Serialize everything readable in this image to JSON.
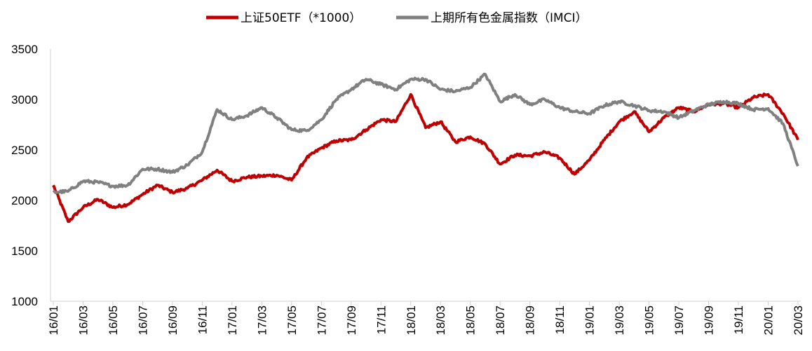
{
  "chart_data": {
    "type": "line",
    "title": "",
    "xlabel": "",
    "ylabel": "",
    "ylim": [
      1000,
      3500
    ],
    "yticks": [
      1000,
      1500,
      2000,
      2500,
      3000,
      3500
    ],
    "x_tick_labels": [
      "16/01",
      "16/03",
      "16/05",
      "16/07",
      "16/09",
      "16/11",
      "17/01",
      "17/03",
      "17/05",
      "17/07",
      "17/09",
      "17/11",
      "18/01",
      "18/03",
      "18/05",
      "18/07",
      "18/09",
      "18/11",
      "19/01",
      "19/03",
      "19/05",
      "19/07",
      "19/09",
      "19/11",
      "20/01",
      "20/03"
    ],
    "grid": false,
    "legend": "top-center",
    "series": [
      {
        "name": "上证50ETF（*1000）",
        "color": "#c00000",
        "points": [
          [
            "16/01",
            2150
          ],
          [
            "16/02",
            1790
          ],
          [
            "16/03",
            1930
          ],
          [
            "16/04",
            2010
          ],
          [
            "16/05",
            1930
          ],
          [
            "16/06",
            1960
          ],
          [
            "16/07",
            2060
          ],
          [
            "16/08",
            2150
          ],
          [
            "16/09",
            2080
          ],
          [
            "16/10",
            2120
          ],
          [
            "16/11",
            2200
          ],
          [
            "16/12",
            2300
          ],
          [
            "17/01",
            2190
          ],
          [
            "17/02",
            2230
          ],
          [
            "17/03",
            2240
          ],
          [
            "17/04",
            2250
          ],
          [
            "17/05",
            2200
          ],
          [
            "17/06",
            2420
          ],
          [
            "17/07",
            2520
          ],
          [
            "17/08",
            2590
          ],
          [
            "17/09",
            2600
          ],
          [
            "17/10",
            2700
          ],
          [
            "17/11",
            2800
          ],
          [
            "17/12",
            2780
          ],
          [
            "18/01",
            3050
          ],
          [
            "18/02",
            2720
          ],
          [
            "18/03",
            2780
          ],
          [
            "18/04",
            2580
          ],
          [
            "18/05",
            2630
          ],
          [
            "18/06",
            2560
          ],
          [
            "18/07",
            2360
          ],
          [
            "18/08",
            2450
          ],
          [
            "18/09",
            2440
          ],
          [
            "18/10",
            2480
          ],
          [
            "18/11",
            2420
          ],
          [
            "18/12",
            2260
          ],
          [
            "19/01",
            2400
          ],
          [
            "19/02",
            2600
          ],
          [
            "19/03",
            2780
          ],
          [
            "19/04",
            2880
          ],
          [
            "19/05",
            2680
          ],
          [
            "19/06",
            2820
          ],
          [
            "19/07",
            2920
          ],
          [
            "19/08",
            2880
          ],
          [
            "19/09",
            2950
          ],
          [
            "19/10",
            2960
          ],
          [
            "19/11",
            2920
          ],
          [
            "19/12",
            3020
          ],
          [
            "20/01",
            3050
          ],
          [
            "20/02",
            2860
          ],
          [
            "20/03",
            2600
          ]
        ]
      },
      {
        "name": "上期所有色金属指数（IMCI）",
        "color": "#808080",
        "points": [
          [
            "16/01",
            2080
          ],
          [
            "16/02",
            2090
          ],
          [
            "16/03",
            2190
          ],
          [
            "16/04",
            2180
          ],
          [
            "16/05",
            2140
          ],
          [
            "16/06",
            2150
          ],
          [
            "16/07",
            2310
          ],
          [
            "16/08",
            2310
          ],
          [
            "16/09",
            2280
          ],
          [
            "16/10",
            2350
          ],
          [
            "16/11",
            2480
          ],
          [
            "16/12",
            2900
          ],
          [
            "17/01",
            2800
          ],
          [
            "17/02",
            2840
          ],
          [
            "17/03",
            2920
          ],
          [
            "17/04",
            2820
          ],
          [
            "17/05",
            2700
          ],
          [
            "17/06",
            2690
          ],
          [
            "17/07",
            2800
          ],
          [
            "17/08",
            3000
          ],
          [
            "17/09",
            3100
          ],
          [
            "17/10",
            3200
          ],
          [
            "17/11",
            3150
          ],
          [
            "17/12",
            3100
          ],
          [
            "18/01",
            3200
          ],
          [
            "18/02",
            3200
          ],
          [
            "18/03",
            3100
          ],
          [
            "18/04",
            3080
          ],
          [
            "18/05",
            3120
          ],
          [
            "18/06",
            3250
          ],
          [
            "18/07",
            2980
          ],
          [
            "18/08",
            3050
          ],
          [
            "18/09",
            2950
          ],
          [
            "18/10",
            3000
          ],
          [
            "18/11",
            2920
          ],
          [
            "18/12",
            2880
          ],
          [
            "19/01",
            2860
          ],
          [
            "19/02",
            2940
          ],
          [
            "19/03",
            2980
          ],
          [
            "19/04",
            2940
          ],
          [
            "19/05",
            2890
          ],
          [
            "19/06",
            2880
          ],
          [
            "19/07",
            2820
          ],
          [
            "19/08",
            2890
          ],
          [
            "19/09",
            2950
          ],
          [
            "19/10",
            2980
          ],
          [
            "19/11",
            2960
          ],
          [
            "19/12",
            2900
          ],
          [
            "20/01",
            2910
          ],
          [
            "20/02",
            2760
          ],
          [
            "20/03",
            2340
          ]
        ]
      }
    ]
  }
}
